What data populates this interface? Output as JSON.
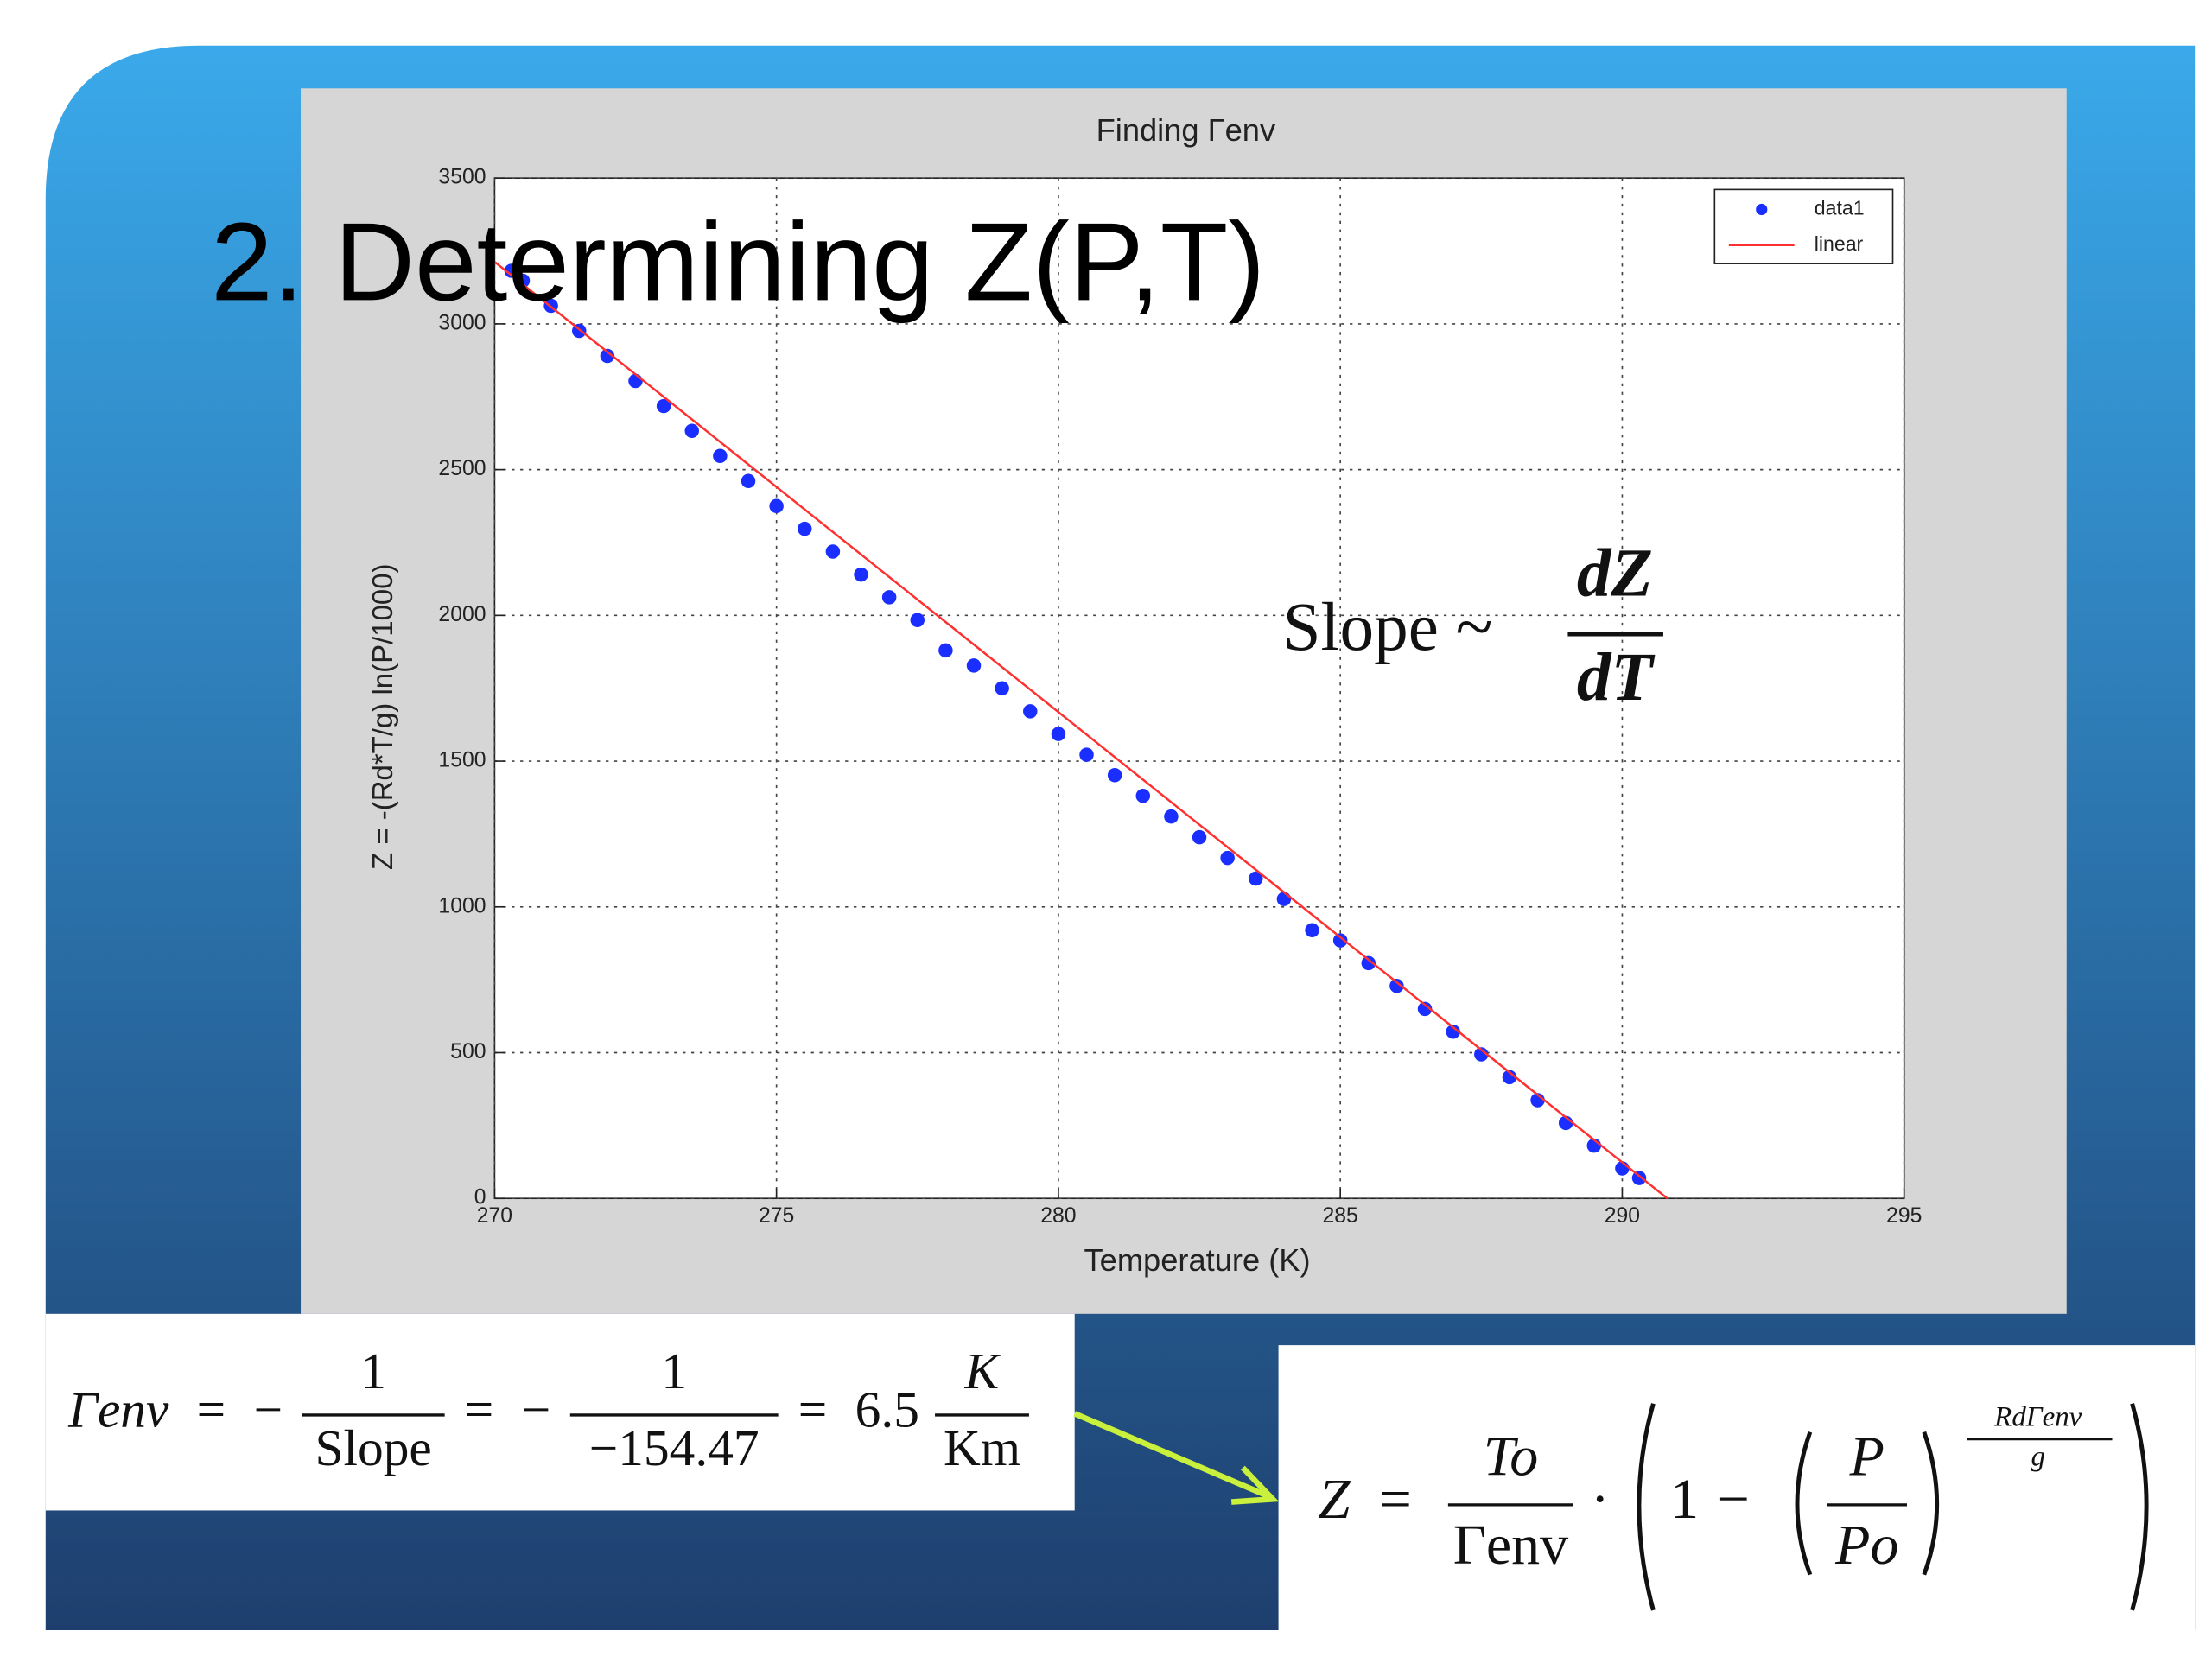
{
  "slide": {
    "title": "2. Determining Z(P,T)",
    "gamma_equation": {
      "lhs": "Γenv",
      "equals": "=",
      "minus": "−",
      "fraction1": {
        "num": "1",
        "den": "Slope"
      },
      "fraction2": {
        "num": "1",
        "den": "−154.47"
      },
      "value": "6.5",
      "unit": {
        "num": "K",
        "den": "Km"
      }
    },
    "z_equation": {
      "lhs": "Z",
      "equals": "=",
      "fraction": {
        "num": "To",
        "den": "Γenv"
      },
      "dot": "·",
      "one": "1",
      "minus": "−",
      "inner": {
        "num": "P",
        "den": "Po"
      },
      "exponent": {
        "num": "RdΓenv",
        "den": "g"
      }
    }
  },
  "chart_data": {
    "type": "scatter",
    "title": "Finding Γenv",
    "x_label": "Temperature (K)",
    "y_label": "Z = -(Rd*T/g) ln(P/1000)",
    "annotation": {
      "text": "Slope ~",
      "num": "dZ",
      "den": "dT"
    },
    "xlim": [
      270,
      295
    ],
    "xticks": [
      270,
      275,
      280,
      285,
      290,
      295
    ],
    "ylim": [
      0,
      3500
    ],
    "yticks": [
      0,
      500,
      1000,
      1500,
      2000,
      2500,
      3000,
      3500
    ],
    "grid": true,
    "legend": "upper right",
    "series": [
      {
        "name": "data1",
        "style": "markers",
        "color": "#1a2eff",
        "x": [
          270.3,
          270.5,
          271,
          271.5,
          272,
          272.5,
          273,
          273.5,
          274,
          274.5,
          275,
          275.5,
          276,
          276.5,
          277,
          277.5,
          278,
          278.5,
          279,
          279.5,
          280,
          280.5,
          281,
          281.5,
          282,
          282.5,
          283,
          283.5,
          284,
          284.5,
          285,
          285.5,
          286,
          286.5,
          287,
          287.5,
          288,
          288.5,
          289,
          289.5,
          290,
          290.3
        ],
        "values": [
          3182,
          3148,
          3062,
          2976,
          2890,
          2804,
          2718,
          2633,
          2547,
          2461,
          2375,
          2297,
          2219,
          2140,
          2062,
          1984,
          1880,
          1828,
          1750,
          1671,
          1593,
          1522,
          1452,
          1381,
          1310,
          1239,
          1168,
          1097,
          1027,
          920,
          885,
          807,
          729,
          650,
          572,
          494,
          416,
          337,
          259,
          181,
          103,
          70
        ]
      },
      {
        "name": "linear",
        "style": "line",
        "color": "#ff3030",
        "x": [
          270,
          290.8
        ],
        "values": [
          3213,
          0
        ]
      }
    ]
  }
}
